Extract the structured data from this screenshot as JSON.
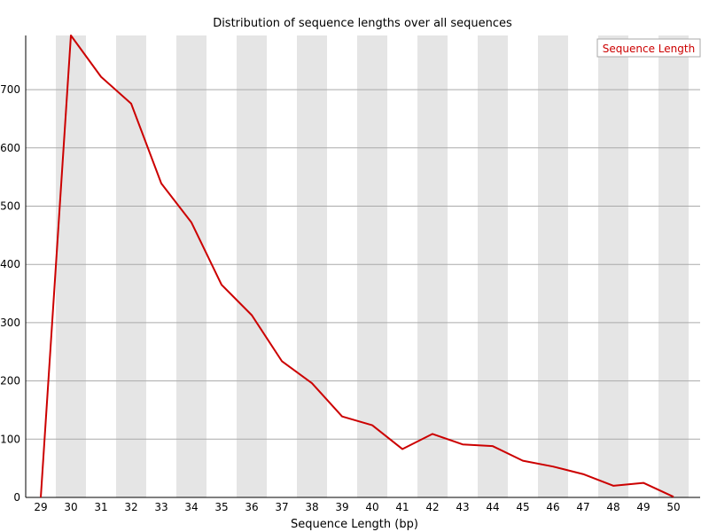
{
  "chart_data": {
    "type": "line",
    "title": "Distribution of sequence lengths over all sequences",
    "xlabel": "Sequence Length (bp)",
    "ylabel": "",
    "x": [
      29,
      30,
      31,
      32,
      33,
      34,
      35,
      36,
      37,
      38,
      39,
      40,
      41,
      42,
      43,
      44,
      45,
      46,
      47,
      48,
      49,
      50
    ],
    "series": [
      {
        "name": "Sequence Length",
        "color": "#cc0000",
        "values": [
          0,
          793,
          722,
          676,
          539,
          472,
          365,
          313,
          234,
          196,
          139,
          124,
          83,
          109,
          91,
          88,
          63,
          53,
          40,
          20,
          25,
          1
        ]
      }
    ],
    "ylim": [
      0,
      793
    ],
    "yticks": [
      0,
      100,
      200,
      300,
      400,
      500,
      600,
      700
    ],
    "grid": "horizontal",
    "band_color": "#e5e5e5",
    "legend": "top-right"
  }
}
